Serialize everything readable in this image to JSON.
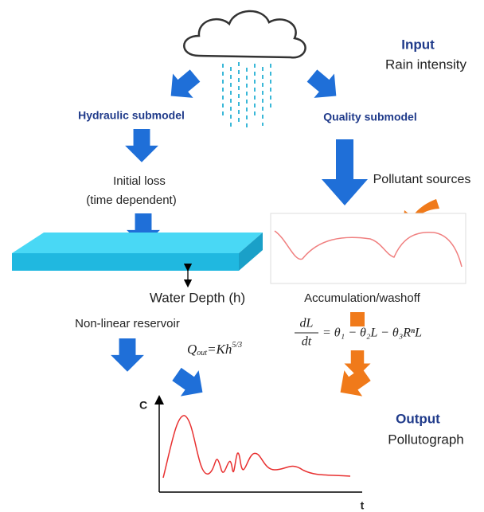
{
  "input": {
    "title": "Input",
    "label": "Rain intensity"
  },
  "hydraulic": {
    "title": "Hydraulic submodel",
    "loss": "Initial loss",
    "loss_note": "(time dependent)",
    "depth": "Water Depth (h)",
    "reservoir": "Non-linear reservoir"
  },
  "quality": {
    "title": "Quality submodel",
    "sources": "Pollutant sources",
    "process": "Accumulation/washoff"
  },
  "equations": {
    "reservoir": {
      "symbol": "Q",
      "sub": "out",
      "rhs": "=Kh",
      "sup": "5/3"
    },
    "washoff": {
      "numerator": "dL",
      "denominator": "dt",
      "rhs": "= θ₁ − θ₂L − θ₃RⁿL"
    }
  },
  "output": {
    "title": "Output",
    "label": "Pollutograph",
    "y_axis": "C",
    "x_axis": "t"
  }
}
